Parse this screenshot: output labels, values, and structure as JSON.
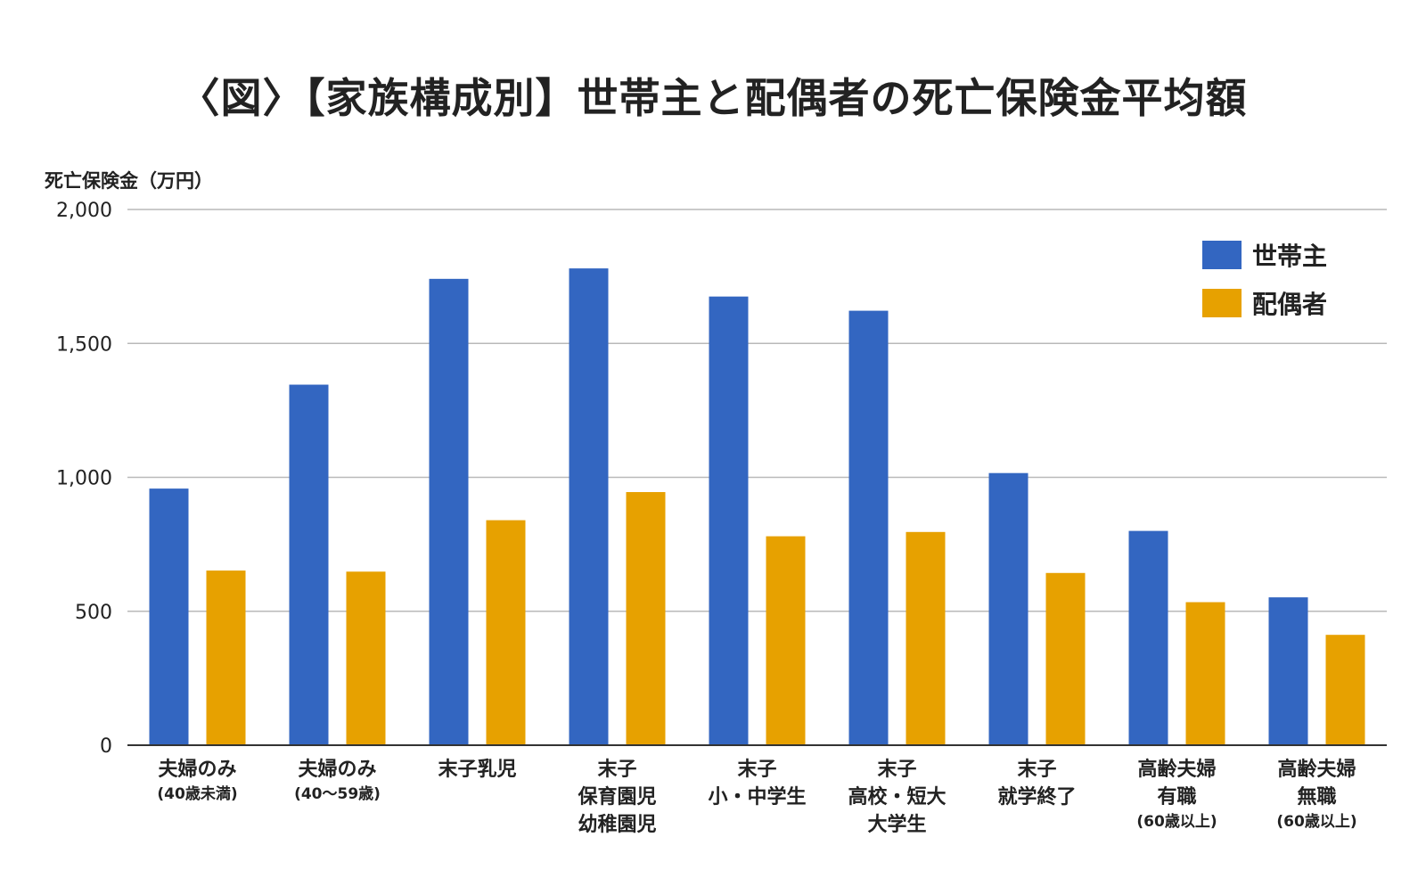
{
  "chart_data": {
    "type": "bar",
    "title": "〈図〉【家族構成別】世帯主と配偶者の死亡保険金平均額",
    "ylabel": "死亡保険金（万円）",
    "ylim": [
      0,
      2000
    ],
    "yticks": [
      0,
      500,
      1000,
      1500,
      2000
    ],
    "ytick_labels": [
      "0",
      "500",
      "1,000",
      "1,500",
      "2,000"
    ],
    "grid": true,
    "legend_position": "top-right",
    "categories": [
      {
        "lines": [
          "夫婦のみ"
        ],
        "sub": "(40歳未満)"
      },
      {
        "lines": [
          "夫婦のみ"
        ],
        "sub": "(40〜59歳)"
      },
      {
        "lines": [
          "末子乳児"
        ],
        "sub": ""
      },
      {
        "lines": [
          "末子",
          "保育園児",
          "幼稚園児"
        ],
        "sub": ""
      },
      {
        "lines": [
          "末子",
          "小・中学生"
        ],
        "sub": ""
      },
      {
        "lines": [
          "末子",
          "高校・短大",
          "大学生"
        ],
        "sub": ""
      },
      {
        "lines": [
          "末子",
          "就学終了"
        ],
        "sub": ""
      },
      {
        "lines": [
          "高齢夫婦",
          "有職"
        ],
        "sub": "(60歳以上)"
      },
      {
        "lines": [
          "高齢夫婦",
          "無職"
        ],
        "sub": "(60歳以上)"
      }
    ],
    "series": [
      {
        "name": "世帯主",
        "color": "#3366c1",
        "values": [
          958,
          1346,
          1741,
          1780,
          1675,
          1622,
          1016,
          800,
          552
        ]
      },
      {
        "name": "配偶者",
        "color": "#e7a100",
        "values": [
          652,
          648,
          840,
          945,
          780,
          796,
          643,
          534,
          412
        ]
      }
    ]
  }
}
